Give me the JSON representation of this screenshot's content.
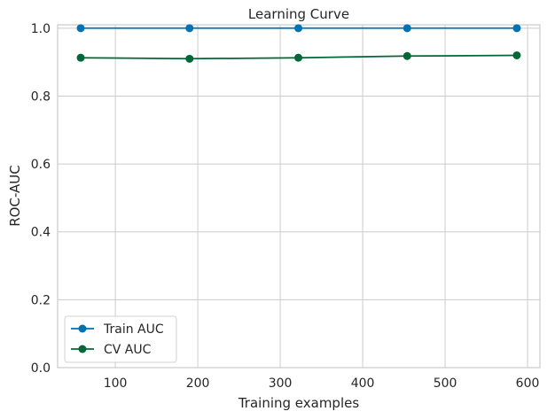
{
  "chart_data": {
    "type": "line",
    "title": "Learning Curve",
    "xlabel": "Training examples",
    "ylabel": "ROC-AUC",
    "xlim": [
      30,
      615
    ],
    "ylim": [
      0.0,
      1.01
    ],
    "xticks": [
      100,
      200,
      300,
      400,
      500,
      600
    ],
    "yticks": [
      0.0,
      0.2,
      0.4,
      0.6,
      0.8,
      1.0
    ],
    "xtick_labels": [
      "100",
      "200",
      "300",
      "400",
      "500",
      "600"
    ],
    "ytick_labels": [
      "0.0",
      "0.2",
      "0.4",
      "0.6",
      "0.8",
      "1.0"
    ],
    "grid": true,
    "legend_position": "lower-left",
    "x": [
      58,
      190,
      322,
      454,
      587
    ],
    "series": [
      {
        "name": "Train AUC",
        "color": "#0072b2",
        "values": [
          1.0,
          1.0,
          1.0,
          1.0,
          1.0
        ]
      },
      {
        "name": "CV AUC",
        "color": "#006837",
        "values": [
          0.913,
          0.91,
          0.913,
          0.918,
          0.92
        ]
      }
    ]
  }
}
